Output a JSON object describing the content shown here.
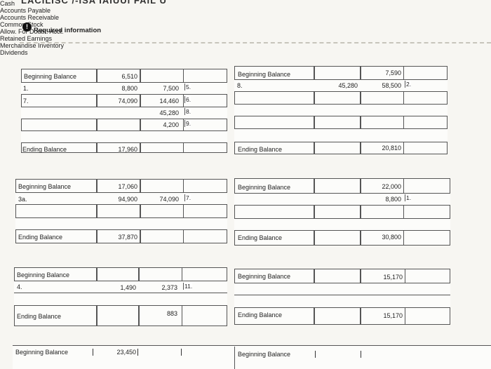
{
  "header": {
    "clipped_title": "LACILISC /-ISA IAIUUI FAIL U",
    "info_icon": "!",
    "required_information": "Required information"
  },
  "accounts": {
    "cash": {
      "name": "Cash",
      "beginning_label": "Beginning Balance",
      "beginning_value": "6,510",
      "debits": [
        {
          "ref": "1.",
          "value": "8,800"
        },
        {
          "ref": "7.",
          "value": "74,090"
        }
      ],
      "credits": [
        {
          "ref": "5.",
          "value": "7,500"
        },
        {
          "ref": "6.",
          "value": "14,460"
        },
        {
          "ref": "8.",
          "value": "45,280"
        },
        {
          "ref": "9.",
          "value": "4,200"
        }
      ],
      "ending_label": "Ending Balance",
      "ending_value": "17,960"
    },
    "accounts_payable": {
      "name": "Accounts Payable",
      "beginning_label": "Beginning Balance",
      "beginning_value": "7,590",
      "debits": [
        {
          "ref": "8.",
          "value": "45,280"
        }
      ],
      "credits": [
        {
          "ref": "2.",
          "value": "58,500"
        }
      ],
      "ending_label": "Ending Balance",
      "ending_value": "20,810"
    },
    "accounts_receivable": {
      "name": "Accounts Receivable",
      "beginning_label": "Beginning Balance",
      "beginning_value": "17,060",
      "debits": [
        {
          "ref": "3a.",
          "value": "94,900"
        }
      ],
      "credits": [
        {
          "ref": "7.",
          "value": "74,090"
        }
      ],
      "ending_label": "Ending Balance",
      "ending_value": "37,870"
    },
    "common_stock": {
      "name": "Common Stock",
      "beginning_label": "Beginning Balance",
      "beginning_value": "22,000",
      "credits": [
        {
          "ref": "1.",
          "value": "8,800"
        }
      ],
      "ending_label": "Ending Balance",
      "ending_value": "30,800"
    },
    "allowance": {
      "name": "Allow. For Doubt. Acct.",
      "beginning_label": "Beginning Balance",
      "debits": [
        {
          "ref": "4.",
          "value": "1,490"
        }
      ],
      "credits": [
        {
          "ref": "11.",
          "value": "2,373"
        }
      ],
      "ending_label": "Ending Balance",
      "ending_value": "883"
    },
    "retained_earnings": {
      "name": "Retained Earnings",
      "beginning_label": "Beginning Balance",
      "beginning_value": "15,170",
      "ending_label": "Ending Balance",
      "ending_value": "15,170"
    },
    "merchandise_inventory": {
      "name": "Merchandise Inventory",
      "beginning_label": "Beginning Balance",
      "beginning_value": "23,450"
    },
    "dividends": {
      "name": "Dividends",
      "beginning_label": "Beginning Balance"
    }
  }
}
